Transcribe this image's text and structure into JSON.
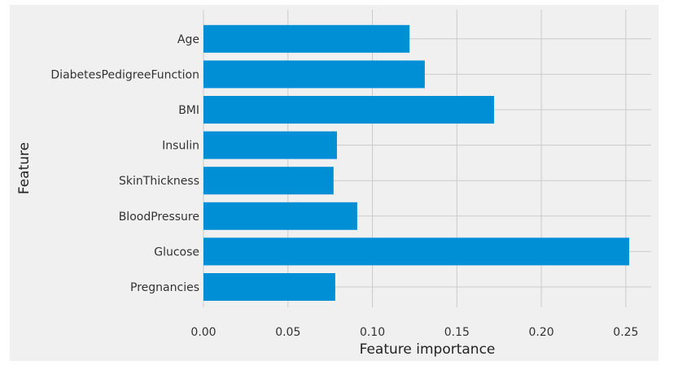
{
  "chart_data": {
    "type": "bar",
    "orientation": "horizontal",
    "title": "",
    "xlabel": "Feature importance",
    "ylabel": "Feature",
    "categories": [
      "Pregnancies",
      "Glucose",
      "BloodPressure",
      "SkinThickness",
      "Insulin",
      "BMI",
      "DiabetesPedigreeFunction",
      "Age"
    ],
    "values": [
      0.078,
      0.252,
      0.091,
      0.077,
      0.079,
      0.172,
      0.131,
      0.122
    ],
    "xlim": [
      0.0,
      0.265
    ],
    "xticks": [
      0.0,
      0.05,
      0.1,
      0.15,
      0.2,
      0.25
    ],
    "xtick_labels": [
      "0.00",
      "0.05",
      "0.10",
      "0.15",
      "0.20",
      "0.25"
    ],
    "grid": true,
    "style": "fivethirtyeight",
    "colors": {
      "bar": "#008fd5",
      "background": "#f0f0f0",
      "grid": "#cbcbcb"
    }
  }
}
